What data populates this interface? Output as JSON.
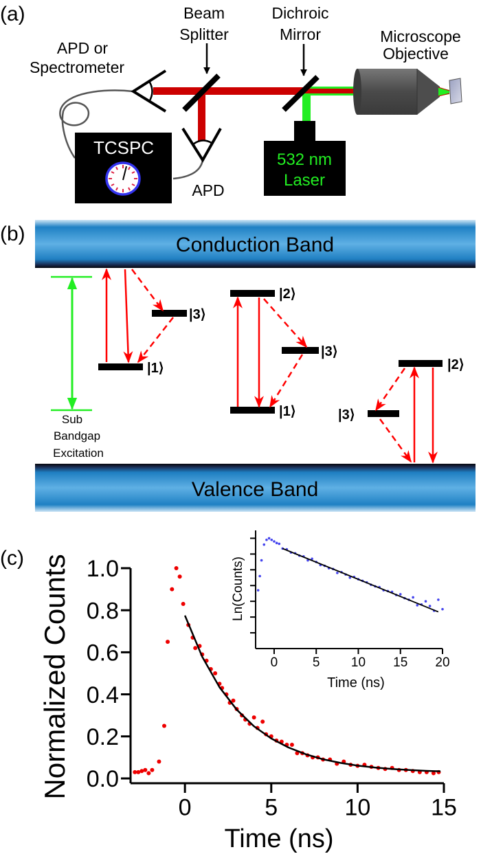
{
  "panel_a": {
    "label": "(a)",
    "apd_or_spectrometer": [
      "APD or",
      "Spectrometer"
    ],
    "beam_splitter": [
      "Beam",
      "Splitter"
    ],
    "dichroic_mirror": [
      "Dichroic",
      "Mirror"
    ],
    "microscope_objective": [
      "Microscope",
      "Objective"
    ],
    "tcspc": "TCSPC",
    "apd": "APD",
    "laser": [
      "532 nm",
      "Laser"
    ],
    "colors": {
      "emission": "#cc0000",
      "excitation": "#22ee22",
      "clock": "#3333ee"
    }
  },
  "panel_b": {
    "label": "(b)",
    "conduction_band": "Conduction Band",
    "valence_band": "Valence Band",
    "excitation": [
      "Sub",
      "Bandgap",
      "Excitation"
    ],
    "kets": {
      "one": "|1⟩",
      "two": "|2⟩",
      "three": "|3⟩"
    },
    "colors": {
      "band": "#2b8fd0",
      "transition": "#ff0000",
      "excitation": "#22ee22"
    }
  },
  "panel_c": {
    "label": "(c)"
  },
  "chart_data": [
    {
      "type": "scatter",
      "xlabel": "Time (ns)",
      "ylabel": "Normalized Counts",
      "xlim": [
        -3.15,
        15
      ],
      "ylim": [
        0,
        1.0
      ],
      "xticks": [
        "0",
        "5",
        "10",
        "15"
      ],
      "yticks": [
        "0.0",
        "0.2",
        "0.4",
        "0.6",
        "0.8",
        "1.0"
      ],
      "grid": false,
      "color": "#ee0000",
      "x": [
        -2.9,
        -2.7,
        -2.5,
        -2.3,
        -2.1,
        -1.9,
        -1.5,
        -1.2,
        -1.0,
        -0.75,
        -0.5,
        -0.3,
        -0.1,
        0.2,
        0.45,
        0.6,
        0.85,
        1.0,
        1.25,
        1.5,
        1.75,
        2.0,
        2.15,
        2.4,
        2.6,
        2.8,
        3.0,
        3.3,
        3.5,
        3.75,
        4.0,
        4.2,
        4.5,
        4.7,
        5.0,
        5.3,
        5.6,
        5.9,
        6.2,
        6.5,
        6.8,
        7.1,
        7.4,
        7.7,
        8.0,
        8.4,
        8.8,
        9.2,
        9.6,
        10.0,
        10.4,
        10.8,
        11.2,
        11.6,
        12.0,
        12.4,
        12.8,
        13.2,
        13.6,
        14.0,
        14.4,
        14.7
      ],
      "y": [
        0.03,
        0.03,
        0.035,
        0.04,
        0.025,
        0.04,
        0.08,
        0.25,
        0.65,
        0.9,
        1.0,
        0.96,
        0.83,
        0.73,
        0.67,
        0.62,
        0.63,
        0.59,
        0.56,
        0.52,
        0.5,
        0.45,
        0.43,
        0.4,
        0.36,
        0.37,
        0.33,
        0.3,
        0.28,
        0.26,
        0.29,
        0.24,
        0.27,
        0.21,
        0.2,
        0.18,
        0.175,
        0.16,
        0.16,
        0.12,
        0.12,
        0.11,
        0.1,
        0.1,
        0.09,
        0.09,
        0.07,
        0.08,
        0.065,
        0.06,
        0.065,
        0.055,
        0.05,
        0.045,
        0.05,
        0.04,
        0.04,
        0.035,
        0.03,
        0.03,
        0.025,
        0.03
      ],
      "fit": {
        "x": [
          0,
          1,
          2,
          3,
          4,
          5,
          6,
          7,
          8,
          9,
          10,
          11,
          12,
          13,
          14,
          14.8
        ],
        "y": [
          0.775,
          0.579,
          0.434,
          0.327,
          0.248,
          0.19,
          0.147,
          0.115,
          0.091,
          0.074,
          0.061,
          0.052,
          0.045,
          0.04,
          0.036,
          0.034
        ],
        "color": "#000000"
      }
    },
    {
      "type": "scatter",
      "xlabel": "Time (ns)",
      "ylabel": "Ln(Counts)",
      "xlim": [
        -2.2,
        20
      ],
      "ylim": [
        0,
        7.5
      ],
      "xticks": [
        "0",
        "5",
        "10",
        "15",
        "20"
      ],
      "ytick_values": [
        1,
        2,
        3,
        4,
        5,
        6,
        7
      ],
      "grid": false,
      "color": "#4444ee",
      "x": [
        -1.9,
        -1.7,
        -1.5,
        -1.2,
        -0.9,
        -0.6,
        -0.3,
        0,
        0.3,
        0.6,
        1,
        1.5,
        2,
        2.5,
        3,
        3.5,
        4,
        4.5,
        5,
        5.5,
        6,
        6.5,
        7,
        7.5,
        8,
        8.5,
        9,
        9.5,
        10,
        10.5,
        11,
        11.5,
        12,
        12.5,
        13,
        13.5,
        14,
        14.5,
        15,
        15.5,
        16,
        16.5,
        17,
        17.5,
        18,
        18.5,
        19,
        19.5,
        20
      ],
      "y": [
        3.7,
        4.6,
        5.6,
        6.6,
        6.9,
        7.0,
        6.9,
        6.8,
        6.7,
        6.65,
        6.35,
        6.3,
        6.1,
        6.05,
        5.9,
        5.85,
        5.6,
        5.7,
        5.5,
        5.3,
        5.25,
        5.1,
        5.05,
        4.8,
        4.85,
        4.7,
        4.5,
        4.55,
        4.4,
        4.3,
        4.2,
        4.05,
        3.95,
        3.9,
        3.7,
        3.65,
        3.6,
        3.4,
        3.45,
        3.2,
        3.1,
        3.25,
        2.75,
        2.8,
        3.0,
        2.7,
        2.4,
        3.1,
        2.5
      ],
      "fit": {
        "x": [
          1,
          19.5
        ],
        "y": [
          6.35,
          2.33
        ],
        "color": "#000000"
      }
    }
  ]
}
